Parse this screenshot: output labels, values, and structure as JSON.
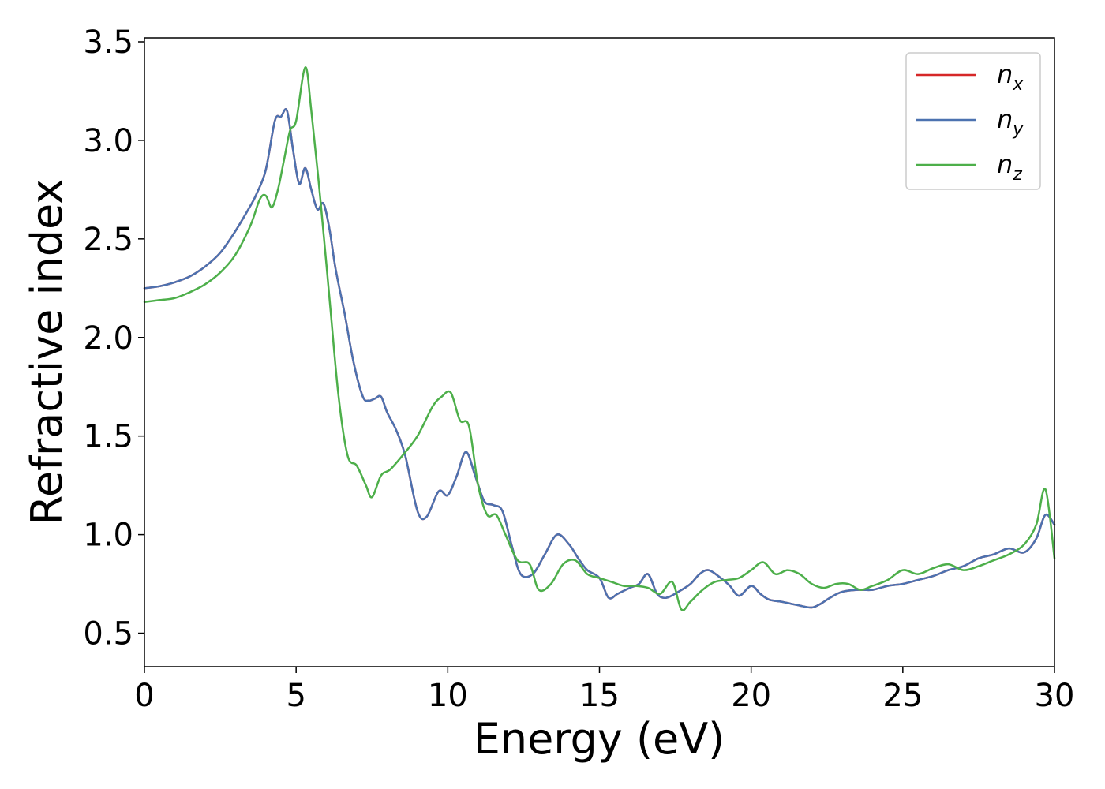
{
  "chart_data": {
    "type": "line",
    "title": "",
    "xlabel": "Energy (eV)",
    "ylabel": "Refractive index",
    "xlim": [
      0,
      30
    ],
    "ylim": [
      0.33,
      3.52
    ],
    "xticks": [
      0,
      5,
      10,
      15,
      20,
      25,
      30
    ],
    "xtick_labels": [
      "0",
      "5",
      "10",
      "15",
      "20",
      "25",
      "30"
    ],
    "yticks": [
      0.5,
      1.0,
      1.5,
      2.0,
      2.5,
      3.0,
      3.5
    ],
    "ytick_labels": [
      "0.5",
      "1.0",
      "1.5",
      "2.0",
      "2.5",
      "3.0",
      "3.5"
    ],
    "grid": false,
    "legend_position": "top-right",
    "series": [
      {
        "name": "n_x",
        "legend_base": "n",
        "legend_sub": "x",
        "color": "#d62728",
        "x": [
          0,
          0.5,
          1,
          1.5,
          2,
          2.5,
          3,
          3.5,
          3.7,
          4,
          4.3,
          4.5,
          4.7,
          4.9,
          5.1,
          5.3,
          5.5,
          5.7,
          5.9,
          6.1,
          6.3,
          6.6,
          6.9,
          7.2,
          7.4,
          7.6,
          7.8,
          8,
          8.3,
          8.6,
          9.0,
          9.3,
          9.7,
          10,
          10.3,
          10.6,
          10.9,
          11.2,
          11.5,
          11.8,
          12.1,
          12.4,
          12.8,
          13.2,
          13.6,
          14.0,
          14.3,
          14.6,
          15.0,
          15.3,
          15.6,
          16.0,
          16.3,
          16.6,
          16.9,
          17.2,
          17.6,
          18.0,
          18.3,
          18.6,
          19.0,
          19.3,
          19.6,
          20.0,
          20.3,
          20.6,
          21.0,
          21.3,
          21.6,
          22.0,
          22.3,
          22.6,
          23.0,
          23.5,
          24.0,
          24.5,
          25.0,
          25.5,
          26.0,
          26.5,
          27.0,
          27.5,
          28.0,
          28.5,
          29.0,
          29.4,
          29.7,
          30
        ],
        "y": [
          2.25,
          2.26,
          2.28,
          2.31,
          2.36,
          2.43,
          2.54,
          2.67,
          2.73,
          2.85,
          3.1,
          3.12,
          3.15,
          2.95,
          2.78,
          2.86,
          2.75,
          2.65,
          2.68,
          2.55,
          2.35,
          2.12,
          1.87,
          1.7,
          1.68,
          1.69,
          1.7,
          1.62,
          1.53,
          1.4,
          1.12,
          1.09,
          1.22,
          1.2,
          1.3,
          1.42,
          1.3,
          1.17,
          1.15,
          1.12,
          0.95,
          0.8,
          0.8,
          0.9,
          1.0,
          0.95,
          0.88,
          0.82,
          0.78,
          0.68,
          0.7,
          0.73,
          0.75,
          0.8,
          0.7,
          0.68,
          0.71,
          0.75,
          0.8,
          0.82,
          0.78,
          0.74,
          0.69,
          0.74,
          0.7,
          0.67,
          0.66,
          0.65,
          0.64,
          0.63,
          0.65,
          0.68,
          0.71,
          0.72,
          0.72,
          0.74,
          0.75,
          0.77,
          0.79,
          0.82,
          0.84,
          0.88,
          0.9,
          0.93,
          0.91,
          0.98,
          1.1,
          1.05
        ]
      },
      {
        "name": "n_y",
        "legend_base": "n",
        "legend_sub": "y",
        "color": "#4c72b0",
        "x": [
          0,
          0.5,
          1,
          1.5,
          2,
          2.5,
          3,
          3.5,
          3.7,
          4,
          4.3,
          4.5,
          4.7,
          4.9,
          5.1,
          5.3,
          5.5,
          5.7,
          5.9,
          6.1,
          6.3,
          6.6,
          6.9,
          7.2,
          7.4,
          7.6,
          7.8,
          8,
          8.3,
          8.6,
          9.0,
          9.3,
          9.7,
          10,
          10.3,
          10.6,
          10.9,
          11.2,
          11.5,
          11.8,
          12.1,
          12.4,
          12.8,
          13.2,
          13.6,
          14.0,
          14.3,
          14.6,
          15.0,
          15.3,
          15.6,
          16.0,
          16.3,
          16.6,
          16.9,
          17.2,
          17.6,
          18.0,
          18.3,
          18.6,
          19.0,
          19.3,
          19.6,
          20.0,
          20.3,
          20.6,
          21.0,
          21.3,
          21.6,
          22.0,
          22.3,
          22.6,
          23.0,
          23.5,
          24.0,
          24.5,
          25.0,
          25.5,
          26.0,
          26.5,
          27.0,
          27.5,
          28.0,
          28.5,
          29.0,
          29.4,
          29.7,
          30
        ],
        "y": [
          2.25,
          2.26,
          2.28,
          2.31,
          2.36,
          2.43,
          2.54,
          2.67,
          2.73,
          2.85,
          3.1,
          3.12,
          3.15,
          2.95,
          2.78,
          2.86,
          2.75,
          2.65,
          2.68,
          2.55,
          2.35,
          2.12,
          1.87,
          1.7,
          1.68,
          1.69,
          1.7,
          1.62,
          1.53,
          1.4,
          1.12,
          1.09,
          1.22,
          1.2,
          1.3,
          1.42,
          1.3,
          1.17,
          1.15,
          1.12,
          0.95,
          0.8,
          0.8,
          0.9,
          1.0,
          0.95,
          0.88,
          0.82,
          0.78,
          0.68,
          0.7,
          0.73,
          0.75,
          0.8,
          0.7,
          0.68,
          0.71,
          0.75,
          0.8,
          0.82,
          0.78,
          0.74,
          0.69,
          0.74,
          0.7,
          0.67,
          0.66,
          0.65,
          0.64,
          0.63,
          0.65,
          0.68,
          0.71,
          0.72,
          0.72,
          0.74,
          0.75,
          0.77,
          0.79,
          0.82,
          0.84,
          0.88,
          0.9,
          0.93,
          0.91,
          0.98,
          1.1,
          1.05
        ]
      },
      {
        "name": "n_z",
        "legend_base": "n",
        "legend_sub": "z",
        "color": "#4daf4a",
        "x": [
          0,
          0.5,
          1,
          1.5,
          2,
          2.5,
          3,
          3.5,
          3.8,
          4.0,
          4.2,
          4.4,
          4.6,
          4.8,
          5.0,
          5.3,
          5.5,
          5.8,
          6.1,
          6.4,
          6.7,
          7.0,
          7.3,
          7.5,
          7.8,
          8.1,
          8.5,
          9.0,
          9.5,
          9.8,
          10.1,
          10.4,
          10.7,
          11.0,
          11.3,
          11.6,
          11.9,
          12.3,
          12.7,
          13.0,
          13.4,
          13.8,
          14.2,
          14.6,
          15.0,
          15.4,
          15.8,
          16.2,
          16.6,
          17.0,
          17.4,
          17.7,
          18.0,
          18.4,
          18.8,
          19.2,
          19.6,
          20.0,
          20.4,
          20.8,
          21.2,
          21.6,
          22.0,
          22.4,
          22.8,
          23.2,
          23.6,
          24.0,
          24.5,
          25.0,
          25.5,
          26.0,
          26.5,
          27.0,
          27.5,
          28.0,
          28.5,
          29.0,
          29.4,
          29.7,
          30
        ],
        "y": [
          2.18,
          2.19,
          2.2,
          2.23,
          2.27,
          2.33,
          2.42,
          2.57,
          2.7,
          2.72,
          2.66,
          2.75,
          2.9,
          3.05,
          3.1,
          3.37,
          3.15,
          2.7,
          2.2,
          1.7,
          1.4,
          1.35,
          1.25,
          1.19,
          1.3,
          1.33,
          1.4,
          1.5,
          1.65,
          1.7,
          1.72,
          1.58,
          1.55,
          1.25,
          1.1,
          1.1,
          1.0,
          0.87,
          0.85,
          0.72,
          0.75,
          0.85,
          0.87,
          0.8,
          0.78,
          0.76,
          0.74,
          0.74,
          0.73,
          0.7,
          0.76,
          0.62,
          0.66,
          0.72,
          0.76,
          0.77,
          0.78,
          0.82,
          0.86,
          0.8,
          0.82,
          0.8,
          0.75,
          0.73,
          0.75,
          0.75,
          0.72,
          0.74,
          0.77,
          0.82,
          0.8,
          0.83,
          0.85,
          0.82,
          0.84,
          0.87,
          0.9,
          0.95,
          1.05,
          1.23,
          0.88
        ]
      }
    ]
  }
}
